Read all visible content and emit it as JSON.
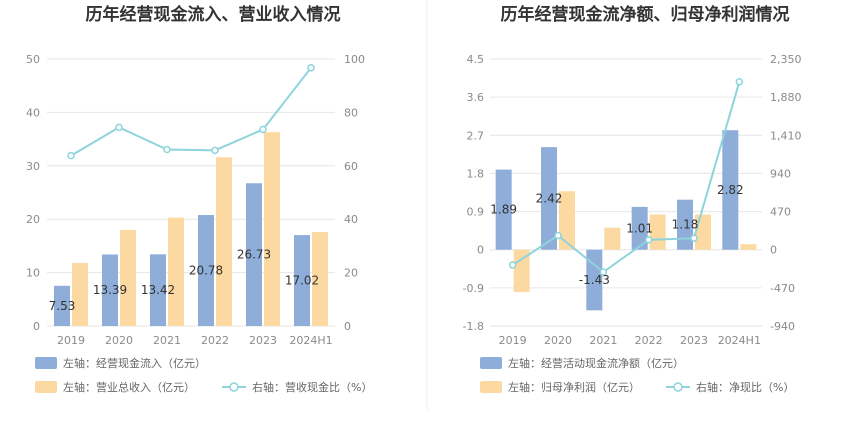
{
  "chart_data": [
    {
      "type": "bar",
      "title": "历年经营现金流入、营业收入情况",
      "categories": [
        "2019",
        "2020",
        "2021",
        "2022",
        "2023",
        "2024H1"
      ],
      "y_left_ticks": [
        "0",
        "10",
        "20",
        "30",
        "40",
        "50"
      ],
      "ylim_left": [
        0,
        50
      ],
      "y_right_ticks": [
        "0",
        "20",
        "40",
        "60",
        "80",
        "100"
      ],
      "ylim_right": [
        0,
        100
      ],
      "series": [
        {
          "name": "左轴：经营现金流入（亿元）",
          "kind": "bar",
          "axis": "left",
          "color": "#8eadd9",
          "values": [
            7.53,
            13.39,
            13.42,
            20.78,
            26.73,
            17.02
          ],
          "labels": [
            "7.53",
            "13.39",
            "13.42",
            "20.78",
            "26.73",
            "17.02"
          ]
        },
        {
          "name": "左轴：营业总收入（亿元）",
          "kind": "bar",
          "axis": "left",
          "color": "#fdd9a2",
          "values": [
            11.8,
            18.0,
            20.3,
            31.6,
            36.3,
            17.6
          ]
        },
        {
          "name": "右轴：营收现金比（%）",
          "kind": "line",
          "axis": "right",
          "color": "#8dd4dd",
          "values": [
            63.8,
            74.4,
            66.1,
            65.8,
            73.6,
            96.7
          ]
        }
      ]
    },
    {
      "type": "bar",
      "title": "历年经营现金流净额、归母净利润情况",
      "categories": [
        "2019",
        "2020",
        "2021",
        "2022",
        "2023",
        "2024H1"
      ],
      "y_left_ticks": [
        "-1.8",
        "-0.9",
        "0",
        "0.9",
        "1.8",
        "2.7",
        "3.6",
        "4.5"
      ],
      "ylim_left": [
        -1.8,
        4.5
      ],
      "y_right_ticks": [
        "-940",
        "-470",
        "0",
        "470",
        "940",
        "1,410",
        "1,880",
        "2,350"
      ],
      "ylim_right": [
        -940,
        2350
      ],
      "series": [
        {
          "name": "左轴：经营活动现金流净额（亿元）",
          "kind": "bar",
          "axis": "left",
          "color": "#8eadd9",
          "values": [
            1.89,
            2.42,
            -1.43,
            1.01,
            1.18,
            2.82
          ],
          "labels": [
            "1.89",
            "2.42",
            "-1.43",
            "1.01",
            "1.18",
            "2.82"
          ]
        },
        {
          "name": "左轴：归母净利润（亿元）",
          "kind": "bar",
          "axis": "left",
          "color": "#fdd9a2",
          "values": [
            -1.0,
            1.38,
            0.52,
            0.83,
            0.83,
            0.13
          ]
        },
        {
          "name": "右轴：净现比（%）",
          "kind": "line",
          "axis": "right",
          "color": "#8dd4dd",
          "values": [
            -189,
            175,
            -275,
            122,
            142,
            2069
          ]
        }
      ]
    }
  ]
}
